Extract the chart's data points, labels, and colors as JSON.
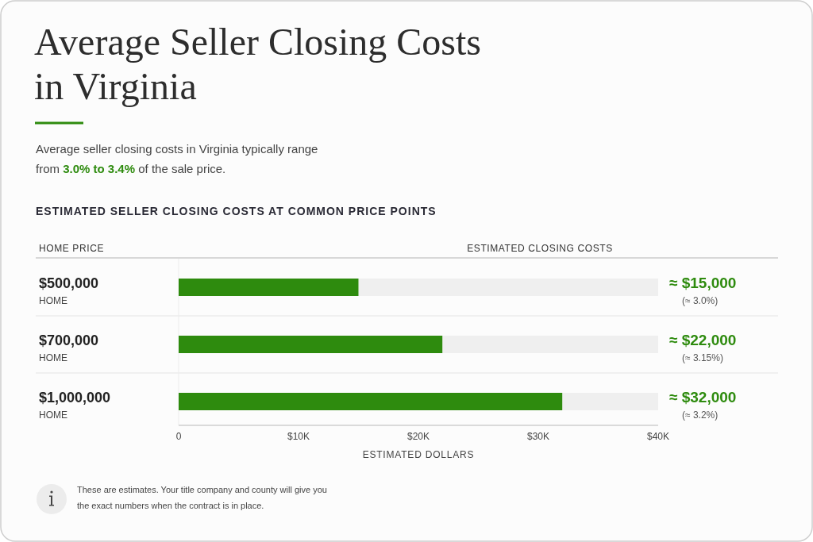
{
  "chart_data": {
    "type": "bar",
    "orientation": "horizontal",
    "title": "Average Seller Closing Costs in Virginia",
    "subtitle": "Average seller closing costs in Virginia typically range from 3.0% to 3.4% of the sale price.",
    "ylabel": "HOME PRICE",
    "xlabel": "ESTIMATED DOLLARS",
    "annotations": [
      "ESTIMATED SELLER CLOSING COSTS AT COMMON PRICE POINTS",
      "ESTIMATED CLOSING COSTS",
      "These are estimates. Your title company and county will give you the exact numbers when the contract is in place."
    ],
    "categories": [
      "$500,000\nHOME",
      "$700,000\nHOME",
      "$1,000,000\nHOME"
    ],
    "values": [
      15000,
      22000,
      32000
    ],
    "color": "#2e8b0e",
    "value_labels": [
      "≈ $15,000\n(≈ 3.0%)",
      "≈ $22,000\n(≈ 3.15%)",
      "≈ $32,000\n(≈ 3.2%)"
    ],
    "xlim": [
      0,
      40000
    ],
    "xticks": [
      0,
      {
        "value": 10000,
        "label": "$10K"
      },
      {
        "value": 20000,
        "label": "$20K"
      },
      {
        "value": 30000,
        "label": "$30K"
      },
      {
        "value": 40000,
        "label": "$40K"
      }
    ]
  }
}
